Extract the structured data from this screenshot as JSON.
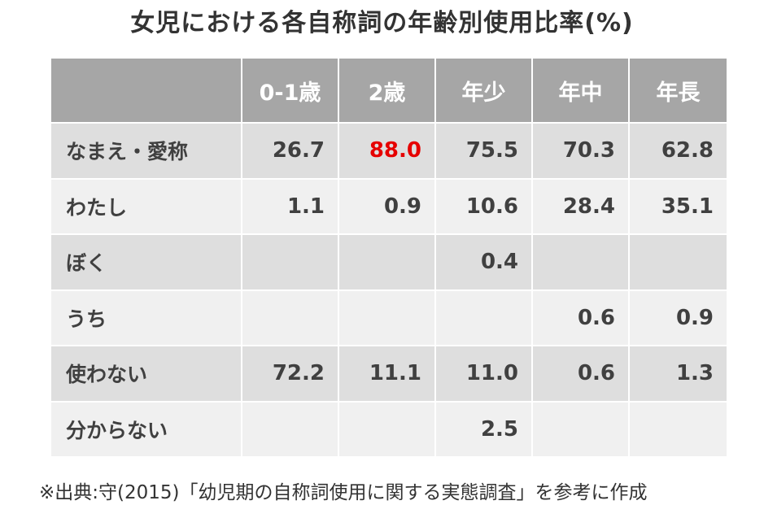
{
  "title": "女児における各自称詞の年齢別使用比率(%)",
  "source": "※出典:守(2015)「幼児期の自称詞使用に関する実態調査」を参考に作成",
  "colors": {
    "header_bg": "#a6a6a6",
    "row_dark": "#dedede",
    "row_light": "#f0f0f0",
    "highlight": "#e60000"
  },
  "chart_data": {
    "type": "table",
    "title": "女児における各自称詞の年齢別使用比率(%)",
    "columns": [
      "",
      "0-1歳",
      "2歳",
      "年少",
      "年中",
      "年長"
    ],
    "rows": [
      {
        "label": "なまえ・愛称",
        "values": [
          "26.7",
          "88.0",
          "75.5",
          "70.3",
          "62.8"
        ],
        "highlight_index": 1
      },
      {
        "label": "わたし",
        "values": [
          "1.1",
          "0.9",
          "10.6",
          "28.4",
          "35.1"
        ]
      },
      {
        "label": "ぼく",
        "values": [
          "",
          "",
          "0.4",
          "",
          ""
        ]
      },
      {
        "label": "うち",
        "values": [
          "",
          "",
          "",
          "0.6",
          "0.9"
        ]
      },
      {
        "label": "使わない",
        "values": [
          "72.2",
          "11.1",
          "11.0",
          "0.6",
          "1.3"
        ]
      },
      {
        "label": "分からない",
        "values": [
          "",
          "",
          "2.5",
          "",
          ""
        ]
      }
    ]
  }
}
